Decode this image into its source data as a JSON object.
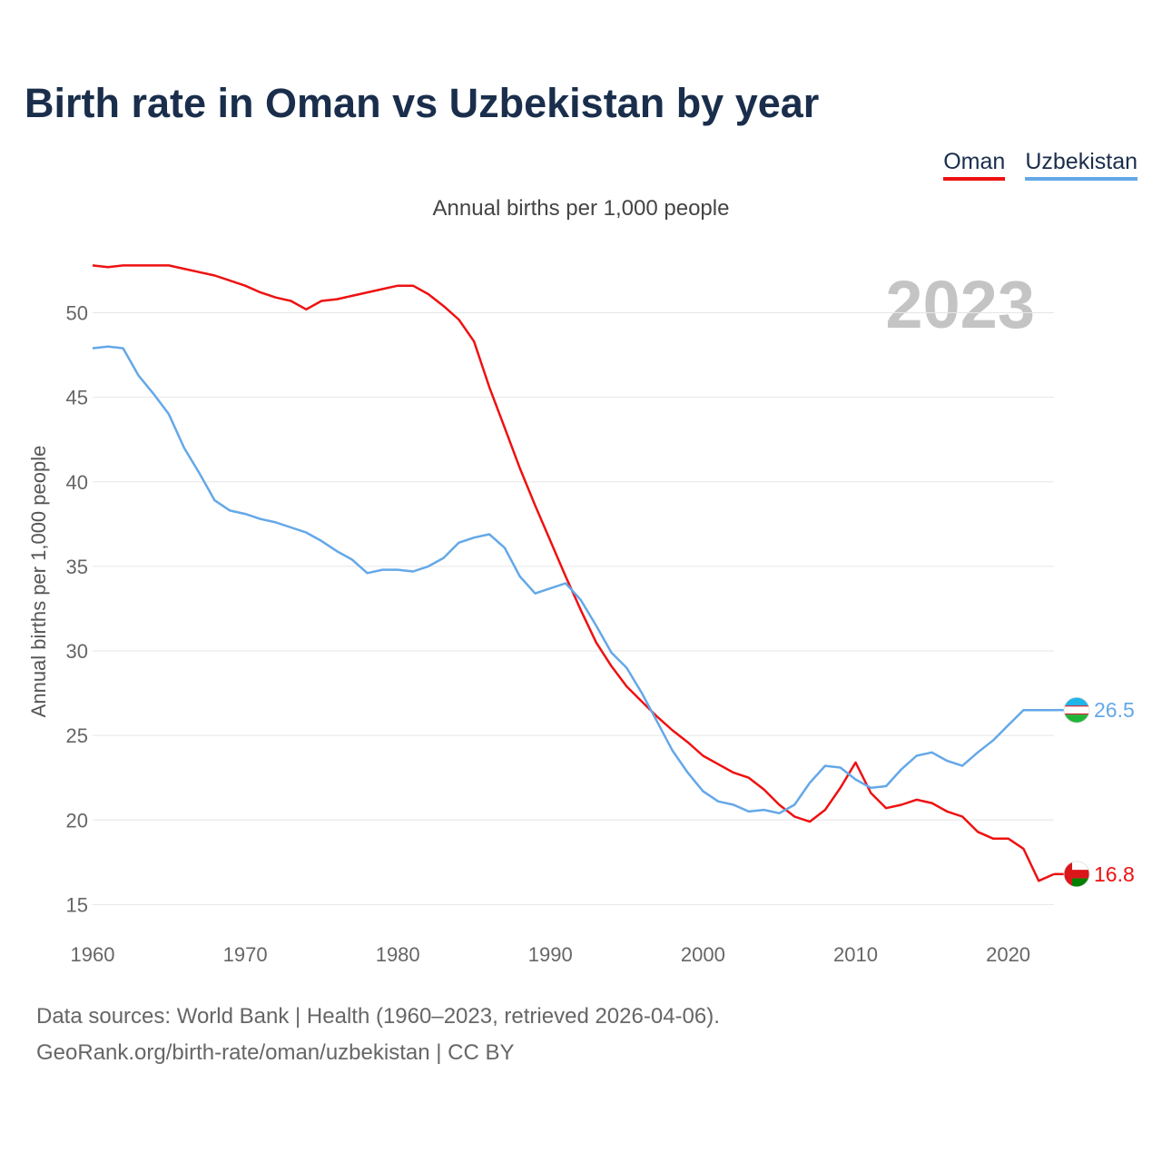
{
  "title": "Birth rate in Oman vs Uzbekistan by year",
  "subtitle": "Annual births per 1,000 people",
  "footer": {
    "line1": "Data sources: World Bank | Health (1960–2023, retrieved 2026-04-06).",
    "line2": "GeoRank.org/birth-rate/oman/uzbekistan | CC BY"
  },
  "chart_data": {
    "type": "line",
    "title": "Birth rate in Oman vs Uzbekistan by year",
    "xlabel": "",
    "ylabel": "Annual births per 1,000 people",
    "year_label": "2023",
    "xlim": [
      1960,
      2023
    ],
    "ylim": [
      14,
      54
    ],
    "x_ticks": [
      1960,
      1970,
      1980,
      1990,
      2000,
      2010,
      2020
    ],
    "y_ticks": [
      15,
      20,
      25,
      30,
      35,
      40,
      45,
      50
    ],
    "grid": true,
    "legend_position": "top-right",
    "x": [
      1960,
      1961,
      1962,
      1963,
      1964,
      1965,
      1966,
      1967,
      1968,
      1969,
      1970,
      1971,
      1972,
      1973,
      1974,
      1975,
      1976,
      1977,
      1978,
      1979,
      1980,
      1981,
      1982,
      1983,
      1984,
      1985,
      1986,
      1987,
      1988,
      1989,
      1990,
      1991,
      1992,
      1993,
      1994,
      1995,
      1996,
      1997,
      1998,
      1999,
      2000,
      2001,
      2002,
      2003,
      2004,
      2005,
      2006,
      2007,
      2008,
      2009,
      2010,
      2011,
      2012,
      2013,
      2014,
      2015,
      2016,
      2017,
      2018,
      2019,
      2020,
      2021,
      2022,
      2023
    ],
    "series": [
      {
        "name": "Oman",
        "color": "#ee1111",
        "end_label": "16.8",
        "values": [
          52.8,
          52.7,
          52.8,
          52.8,
          52.8,
          52.8,
          52.6,
          52.4,
          52.2,
          51.9,
          51.6,
          51.2,
          50.9,
          50.7,
          50.2,
          50.7,
          50.8,
          51.0,
          51.2,
          51.4,
          51.6,
          51.6,
          51.1,
          50.4,
          49.6,
          48.3,
          45.6,
          43.2,
          40.8,
          38.6,
          36.5,
          34.4,
          32.4,
          30.5,
          29.1,
          27.9,
          27.0,
          26.1,
          25.3,
          24.6,
          23.8,
          23.3,
          22.8,
          22.5,
          21.8,
          20.9,
          20.2,
          19.9,
          20.6,
          21.9,
          23.4,
          21.6,
          20.7,
          20.9,
          21.2,
          21.0,
          20.5,
          20.2,
          19.3,
          18.9,
          18.9,
          18.3,
          16.4,
          16.8
        ]
      },
      {
        "name": "Uzbekistan",
        "color": "#64a8e8",
        "end_label": "26.5",
        "values": [
          47.9,
          48.0,
          47.9,
          46.3,
          45.2,
          44.0,
          42.0,
          40.5,
          38.9,
          38.3,
          38.1,
          37.8,
          37.6,
          37.3,
          37.0,
          36.5,
          35.9,
          35.4,
          34.6,
          34.8,
          34.8,
          34.7,
          35.0,
          35.5,
          36.4,
          36.7,
          36.9,
          36.1,
          34.4,
          33.4,
          33.7,
          34.0,
          33.0,
          31.5,
          29.9,
          29.0,
          27.5,
          25.8,
          24.1,
          22.8,
          21.7,
          21.1,
          20.9,
          20.5,
          20.6,
          20.4,
          20.9,
          22.2,
          23.2,
          23.1,
          22.4,
          21.9,
          22.0,
          23.0,
          23.8,
          24.0,
          23.5,
          23.2,
          24.0,
          24.7,
          25.6,
          26.5,
          26.5,
          26.5
        ]
      }
    ]
  }
}
